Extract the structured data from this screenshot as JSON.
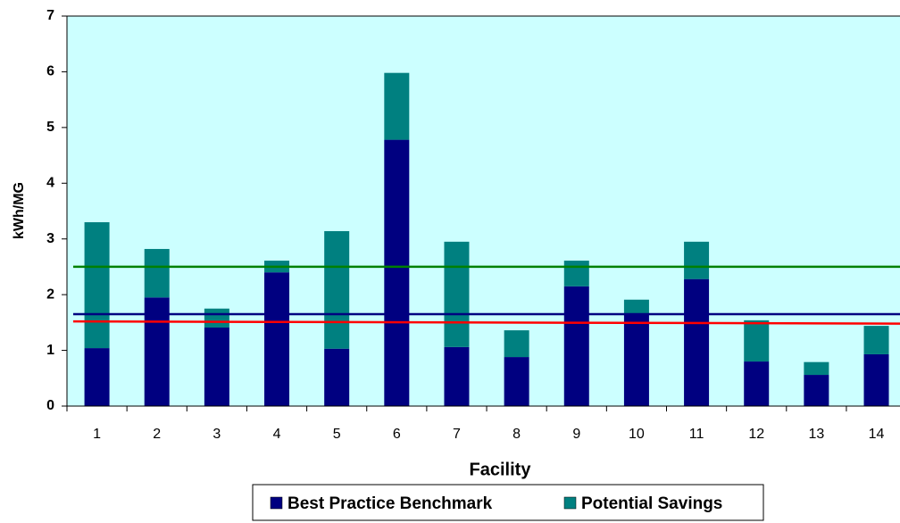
{
  "chart_data": {
    "type": "stacked_bar",
    "x_label": "Facility",
    "y_label": "kWh/MG",
    "categories": [
      "1",
      "2",
      "3",
      "4",
      "5",
      "6",
      "7",
      "8",
      "9",
      "10",
      "11",
      "12",
      "13",
      "14"
    ],
    "series": [
      {
        "name": "Best Practice Benchmark",
        "color": "#000080",
        "values": [
          1.04,
          1.95,
          1.41,
          2.4,
          1.03,
          4.78,
          1.06,
          0.88,
          2.15,
          1.65,
          2.28,
          0.8,
          0.56,
          0.93
        ]
      },
      {
        "name": "Potential Savings",
        "color": "#008080",
        "values": [
          2.26,
          0.87,
          0.34,
          0.21,
          2.11,
          1.2,
          1.89,
          0.48,
          0.46,
          0.26,
          0.67,
          0.74,
          0.23,
          0.51
        ]
      }
    ],
    "reference_lines": [
      {
        "color": "#008000",
        "values": [
          2.5,
          2.5
        ]
      },
      {
        "color": "#000080",
        "values": [
          1.65,
          1.65
        ]
      },
      {
        "color": "#ff0000",
        "values": [
          1.52,
          1.48
        ]
      }
    ],
    "ylim": [
      0,
      7
    ],
    "yticks": [
      0,
      1,
      2,
      3,
      4,
      5,
      6,
      7
    ],
    "plot_background": "#ccffff"
  }
}
